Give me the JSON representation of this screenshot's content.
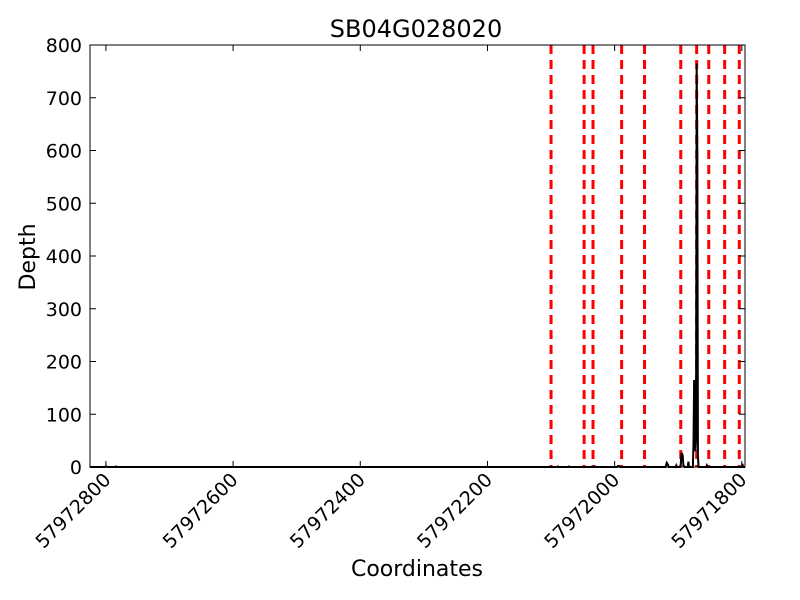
{
  "chart_data": {
    "type": "line",
    "title": "SB04G028020",
    "xlabel": "Coordinates",
    "ylabel": "Depth",
    "xlim": [
      57972825,
      57971795
    ],
    "ylim": [
      0,
      800
    ],
    "x_inverted": true,
    "x_ticks": [
      57972800,
      57972600,
      57972400,
      57972200,
      57972000,
      57971800
    ],
    "x_tick_labels": [
      "57972800",
      "57972600",
      "57972400",
      "57972200",
      "57972000",
      "57971800"
    ],
    "y_ticks": [
      0,
      100,
      200,
      300,
      400,
      500,
      600,
      700,
      800
    ],
    "y_tick_labels": [
      "0",
      "100",
      "200",
      "300",
      "400",
      "500",
      "600",
      "700",
      "800"
    ],
    "grid": false,
    "series": [
      {
        "color": "#000000",
        "style": "solid",
        "points": [
          [
            57972825,
            0
          ],
          [
            57972800,
            0
          ],
          [
            57972799,
            1
          ],
          [
            57972797,
            0
          ],
          [
            57972785,
            0
          ],
          [
            57972784,
            1
          ],
          [
            57972783,
            0
          ],
          [
            57972110,
            0
          ],
          [
            57972090,
            0
          ],
          [
            57972089,
            1
          ],
          [
            57972088,
            0
          ],
          [
            57972073,
            0
          ],
          [
            57972072,
            1
          ],
          [
            57972071,
            0
          ],
          [
            57972032,
            0
          ],
          [
            57972031,
            1
          ],
          [
            57972030,
            0
          ],
          [
            57971996,
            0
          ],
          [
            57971995,
            2
          ],
          [
            57971993,
            2
          ],
          [
            57971992,
            0
          ],
          [
            57971920,
            0
          ],
          [
            57971918,
            8
          ],
          [
            57971916,
            4
          ],
          [
            57971915,
            0
          ],
          [
            57971904,
            0
          ],
          [
            57971903,
            3
          ],
          [
            57971902,
            0
          ],
          [
            57971897,
            0
          ],
          [
            57971896,
            5
          ],
          [
            57971895,
            25
          ],
          [
            57971894,
            25
          ],
          [
            57971893,
            22
          ],
          [
            57971892,
            4
          ],
          [
            57971891,
            2
          ],
          [
            57971890,
            0
          ],
          [
            57971885,
            0
          ],
          [
            57971884,
            10
          ],
          [
            57971883,
            0
          ],
          [
            57971877,
            0
          ],
          [
            57971876,
            45
          ],
          [
            57971875,
            165
          ],
          [
            57971874,
            120
          ],
          [
            57971873,
            30
          ],
          [
            57971872,
            60
          ],
          [
            57971871,
            765
          ],
          [
            57971870,
            600
          ],
          [
            57971869,
            20
          ],
          [
            57971868,
            0
          ],
          [
            57971856,
            0
          ],
          [
            57971855,
            3
          ],
          [
            57971854,
            0
          ],
          [
            57971800,
            0
          ],
          [
            57971799,
            6
          ],
          [
            57971798,
            0
          ],
          [
            57971795,
            0
          ]
        ]
      }
    ],
    "vlines": {
      "color": "#ff0000",
      "style": "dashed",
      "x": [
        57972100,
        57972048,
        57972034,
        57971989,
        57971953,
        57971896,
        57971871,
        57971852,
        57971827,
        57971804
      ]
    }
  }
}
